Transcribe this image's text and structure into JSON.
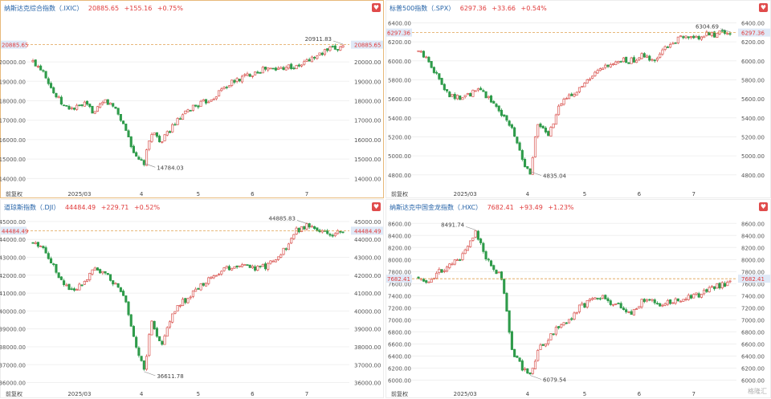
{
  "colors": {
    "up": "#d9534f",
    "down": "#2e9b4a",
    "last": "#e03b3b",
    "label_bg": "#dfe9f7"
  },
  "chart_data": [
    {
      "type": "candlestick",
      "title": "纳斯达克综合指数（.IXIC）",
      "last": "20885.65",
      "change": "+155.16",
      "pct": "+0.75%",
      "ylim": [
        13600,
        22400
      ],
      "y_ticks": [
        14000,
        15000,
        16000,
        17000,
        18000,
        19000,
        20000
      ],
      "y_tick_labels": [
        "14000.00",
        "15000.00",
        "16000.00",
        "17000.00",
        "18000.00",
        "19000.00",
        "20000.00"
      ],
      "month_labels": [
        "2025/03",
        "4",
        "5",
        "6",
        "7"
      ],
      "last_label": "20885.65",
      "high_value": 20911.83,
      "high_label": "20911.83",
      "low_value": 14784.03,
      "low_label": "14784.03",
      "adjust_label": "前复权",
      "waypoints": [
        [
          0,
          20000
        ],
        [
          4,
          19600
        ],
        [
          8,
          18400
        ],
        [
          12,
          17700
        ],
        [
          16,
          17600
        ],
        [
          20,
          17800
        ],
        [
          24,
          17400
        ],
        [
          28,
          18000
        ],
        [
          32,
          17600
        ],
        [
          36,
          16500
        ],
        [
          40,
          15000
        ],
        [
          43,
          14784
        ],
        [
          46,
          16400
        ],
        [
          50,
          15900
        ],
        [
          54,
          16700
        ],
        [
          58,
          17200
        ],
        [
          62,
          17700
        ],
        [
          66,
          17900
        ],
        [
          70,
          18200
        ],
        [
          74,
          18700
        ],
        [
          78,
          19000
        ],
        [
          82,
          19250
        ],
        [
          86,
          19500
        ],
        [
          90,
          19650
        ],
        [
          94,
          19600
        ],
        [
          98,
          19800
        ],
        [
          102,
          19700
        ],
        [
          106,
          20050
        ],
        [
          110,
          20300
        ],
        [
          114,
          20600
        ],
        [
          118,
          20700
        ],
        [
          120,
          20885
        ]
      ]
    },
    {
      "type": "candlestick",
      "title": "标普500指数（.SPX）",
      "last": "6297.36",
      "change": "+33.66",
      "pct": "+0.54%",
      "ylim": [
        4680,
        6480
      ],
      "y_ticks": [
        4800,
        5000,
        5200,
        5400,
        5600,
        5800,
        6000,
        6200,
        6400
      ],
      "y_tick_labels": [
        "4800.00",
        "5000.00",
        "5200.00",
        "5400.00",
        "5600.00",
        "5800.00",
        "6000.00",
        "6200.00",
        "6400.00"
      ],
      "month_labels": [
        "2025/03",
        "4",
        "5",
        "6",
        "7"
      ],
      "last_label": "6297.36",
      "high_value": 6304.69,
      "high_label": "6304.69",
      "low_value": 4835.04,
      "low_label": "4835.04",
      "adjust_label": "前复权",
      "waypoints": [
        [
          0,
          6100
        ],
        [
          4,
          6000
        ],
        [
          8,
          5800
        ],
        [
          12,
          5650
        ],
        [
          16,
          5600
        ],
        [
          20,
          5650
        ],
        [
          24,
          5700
        ],
        [
          28,
          5580
        ],
        [
          32,
          5450
        ],
        [
          36,
          5300
        ],
        [
          40,
          4950
        ],
        [
          43,
          4835
        ],
        [
          46,
          5350
        ],
        [
          50,
          5200
        ],
        [
          54,
          5500
        ],
        [
          58,
          5650
        ],
        [
          62,
          5700
        ],
        [
          66,
          5800
        ],
        [
          70,
          5900
        ],
        [
          74,
          5950
        ],
        [
          78,
          6000
        ],
        [
          82,
          6000
        ],
        [
          86,
          6050
        ],
        [
          90,
          6000
        ],
        [
          94,
          6100
        ],
        [
          98,
          6200
        ],
        [
          102,
          6250
        ],
        [
          106,
          6230
        ],
        [
          110,
          6270
        ],
        [
          114,
          6280
        ],
        [
          118,
          6290
        ],
        [
          120,
          6297
        ]
      ]
    },
    {
      "type": "candlestick",
      "title": "道琼斯指数（.DJI）",
      "last": "44484.49",
      "change": "+229.71",
      "pct": "+0.52%",
      "ylim": [
        35800,
        45400
      ],
      "y_ticks": [
        36000,
        37000,
        38000,
        39000,
        40000,
        41000,
        42000,
        43000,
        44000,
        45000
      ],
      "y_tick_labels": [
        "36000.00",
        "37000.00",
        "38000.00",
        "39000.00",
        "40000.00",
        "41000.00",
        "42000.00",
        "43000.00",
        "44000.00",
        "45000.00"
      ],
      "month_labels": [
        "2025/03",
        "4",
        "5",
        "6",
        "7"
      ],
      "last_label": "44484.49",
      "high_value": 44885.83,
      "high_label": "44885.83",
      "low_value": 36611.78,
      "low_label": "36611.78",
      "adjust_label": "前复权",
      "waypoints": [
        [
          0,
          43800
        ],
        [
          4,
          43600
        ],
        [
          8,
          42500
        ],
        [
          12,
          41500
        ],
        [
          16,
          41200
        ],
        [
          20,
          41700
        ],
        [
          24,
          42500
        ],
        [
          28,
          42000
        ],
        [
          32,
          41500
        ],
        [
          36,
          40500
        ],
        [
          40,
          38000
        ],
        [
          43,
          36612
        ],
        [
          46,
          39500
        ],
        [
          50,
          38000
        ],
        [
          54,
          40000
        ],
        [
          58,
          40500
        ],
        [
          62,
          41000
        ],
        [
          66,
          41500
        ],
        [
          70,
          42000
        ],
        [
          74,
          42300
        ],
        [
          78,
          42500
        ],
        [
          82,
          42700
        ],
        [
          86,
          42300
        ],
        [
          90,
          42500
        ],
        [
          94,
          43000
        ],
        [
          98,
          43500
        ],
        [
          102,
          44500
        ],
        [
          106,
          44800
        ],
        [
          110,
          44600
        ],
        [
          114,
          44300
        ],
        [
          118,
          44400
        ],
        [
          120,
          44484
        ]
      ]
    },
    {
      "type": "candlestick",
      "title": "纳斯达克中国金龙指数（.HXC）",
      "last": "7682.41",
      "change": "+93.49",
      "pct": "+1.23%",
      "ylim": [
        5900,
        8750
      ],
      "y_ticks": [
        6000,
        6200,
        6400,
        6600,
        6800,
        7000,
        7200,
        7400,
        7600,
        7800,
        8000,
        8200,
        8400,
        8600
      ],
      "y_tick_labels": [
        "6000.00",
        "6200.00",
        "6400.00",
        "6600.00",
        "6800.00",
        "7000.00",
        "7200.00",
        "7400.00",
        "7600.00",
        "7800.00",
        "8000.00",
        "8200.00",
        "8400.00",
        "8600.00"
      ],
      "month_labels": [
        "2025/03",
        "4",
        "5",
        "6",
        "7"
      ],
      "last_label": "7682.41",
      "high_value": 8491.74,
      "high_label": "8491.74",
      "low_value": 6079.54,
      "low_label": "6079.54",
      "adjust_label": "前复权",
      "waypoints": [
        [
          0,
          7700
        ],
        [
          4,
          7650
        ],
        [
          8,
          7800
        ],
        [
          12,
          7900
        ],
        [
          16,
          8000
        ],
        [
          20,
          8300
        ],
        [
          22,
          8492
        ],
        [
          25,
          8100
        ],
        [
          28,
          7900
        ],
        [
          32,
          7700
        ],
        [
          36,
          6500
        ],
        [
          40,
          6200
        ],
        [
          43,
          6080
        ],
        [
          46,
          6500
        ],
        [
          50,
          6700
        ],
        [
          54,
          6900
        ],
        [
          58,
          7000
        ],
        [
          62,
          7200
        ],
        [
          66,
          7300
        ],
        [
          70,
          7400
        ],
        [
          74,
          7300
        ],
        [
          78,
          7200
        ],
        [
          82,
          7100
        ],
        [
          86,
          7300
        ],
        [
          90,
          7350
        ],
        [
          94,
          7250
        ],
        [
          98,
          7300
        ],
        [
          102,
          7350
        ],
        [
          106,
          7400
        ],
        [
          110,
          7450
        ],
        [
          114,
          7550
        ],
        [
          118,
          7600
        ],
        [
          120,
          7682
        ]
      ]
    }
  ],
  "watermark": "格隆汇"
}
